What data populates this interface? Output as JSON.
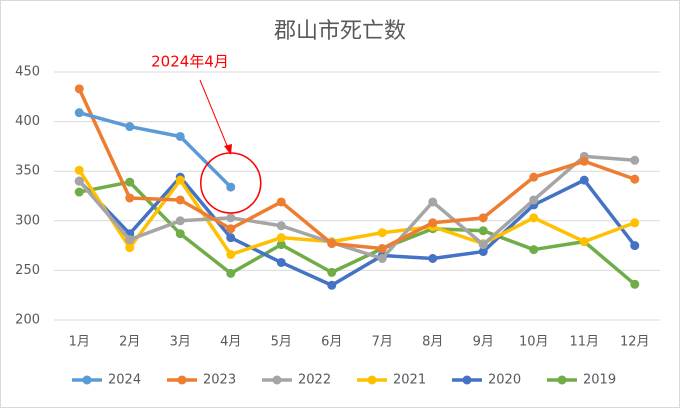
{
  "chart_data": {
    "type": "line",
    "title": "郡山市死亡数",
    "categories": [
      "1月",
      "2月",
      "3月",
      "4月",
      "5月",
      "6月",
      "7月",
      "8月",
      "9月",
      "10月",
      "11月",
      "12月"
    ],
    "series": [
      {
        "name": "2024",
        "color": "#5B9BD5",
        "values": [
          409,
          395,
          385,
          334,
          null,
          null,
          null,
          null,
          null,
          null,
          null,
          null
        ]
      },
      {
        "name": "2023",
        "color": "#ED7D31",
        "values": [
          433,
          323,
          321,
          292,
          319,
          277,
          272,
          298,
          303,
          344,
          360,
          342
        ]
      },
      {
        "name": "2022",
        "color": "#A5A5A5",
        "values": [
          340,
          281,
          300,
          303,
          295,
          278,
          262,
          319,
          276,
          321,
          365,
          361
        ]
      },
      {
        "name": "2021",
        "color": "#FFC000",
        "values": [
          351,
          273,
          341,
          266,
          283,
          279,
          288,
          294,
          277,
          303,
          279,
          298
        ]
      },
      {
        "name": "2020",
        "color": "#4472C4",
        "values": [
          340,
          287,
          344,
          283,
          258,
          235,
          265,
          262,
          269,
          316,
          341,
          275
        ]
      },
      {
        "name": "2019",
        "color": "#70AD47",
        "values": [
          329,
          339,
          287,
          247,
          276,
          248,
          272,
          292,
          290,
          271,
          279,
          236
        ]
      }
    ],
    "ylim": [
      200,
      450
    ],
    "yticks": [
      200,
      250,
      300,
      350,
      400,
      450
    ],
    "grid": true,
    "legend": "bottom",
    "annotations": [
      {
        "text": "2024年4月",
        "color": "#FF0000"
      }
    ]
  }
}
